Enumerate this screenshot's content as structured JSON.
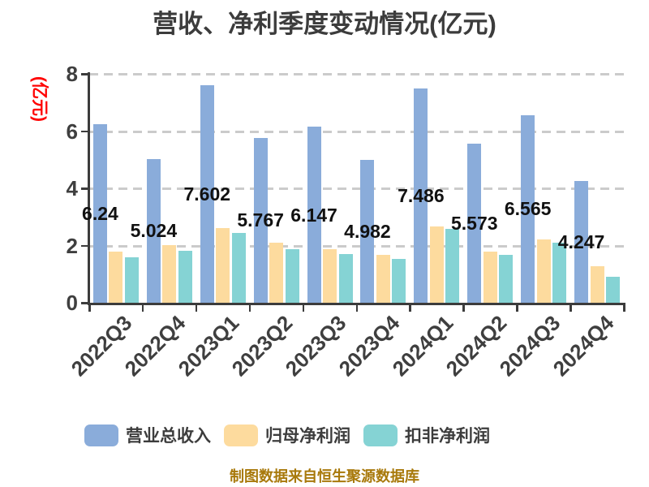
{
  "title": "营收、净利季度变动情况(亿元)",
  "footer_note": "制图数据来自恒生聚源数据库",
  "chart_data": {
    "type": "bar",
    "title": "营收、净利季度变动情况(亿元)",
    "ylabel": "(亿元)",
    "xlabel": "",
    "categories": [
      "2022Q3",
      "2022Q4",
      "2023Q1",
      "2023Q2",
      "2023Q3",
      "2023Q4",
      "2024Q1",
      "2024Q2",
      "2024Q3",
      "2024Q4"
    ],
    "series": [
      {
        "key": "total-revenue",
        "name": "营业总收入",
        "color": "#8aacda",
        "values": [
          6.24,
          5.024,
          7.602,
          5.767,
          6.147,
          4.982,
          7.486,
          5.573,
          6.565,
          4.247
        ],
        "labels": [
          "6.24",
          "5.024",
          "7.602",
          "5.767",
          "6.147",
          "4.982",
          "7.486",
          "5.573",
          "6.565",
          "4.247"
        ]
      },
      {
        "key": "net-profit",
        "name": "归母净利润",
        "color": "#fddb9e",
        "values": [
          1.78,
          2.01,
          2.6,
          2.1,
          1.88,
          1.68,
          2.68,
          1.79,
          2.2,
          1.27
        ]
      },
      {
        "key": "deducted-net-profit",
        "name": "扣非净利润",
        "color": "#85d3d4",
        "values": [
          1.58,
          1.81,
          2.43,
          1.88,
          1.71,
          1.54,
          2.57,
          1.66,
          2.1,
          0.92
        ]
      }
    ],
    "ylim": [
      0,
      8
    ],
    "ytick_step": 2,
    "yticks": [
      0,
      2,
      4,
      6,
      8
    ],
    "grid": "dashed-horizontal",
    "legend_position": "bottom",
    "bar_label_series": "营业总收入",
    "colors": {
      "grid": "#cbcbcb",
      "axis": "#3c3c3c",
      "title": "#3c3c3c",
      "tick_label": "#3f3f3f",
      "data_label": "#111111",
      "ylabel": "#ff0000",
      "footer": "#a8790b"
    }
  }
}
